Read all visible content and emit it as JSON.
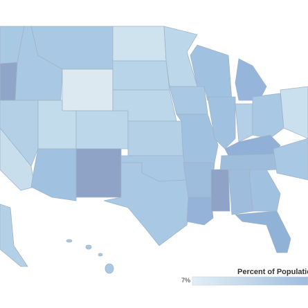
{
  "legend": {
    "title": "Percent of Population c",
    "min_label": "7%"
  }
}
